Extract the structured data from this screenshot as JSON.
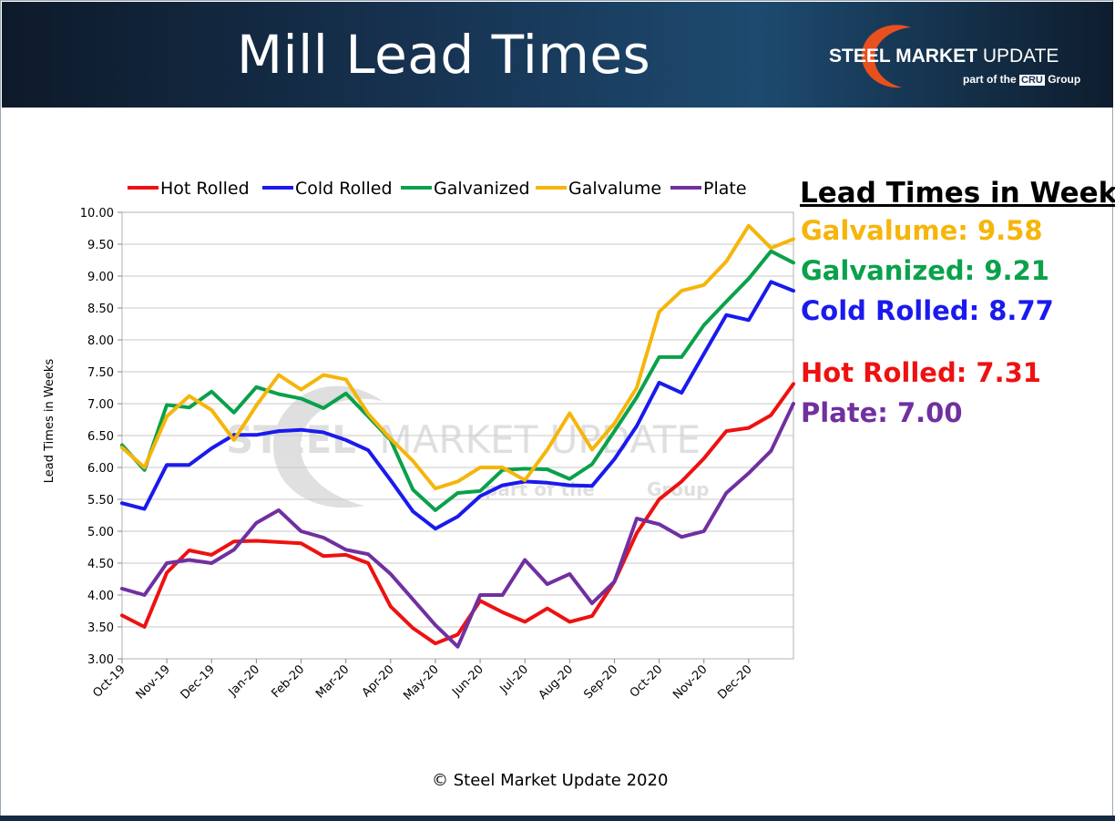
{
  "slide": {
    "title": "Mill Lead Times",
    "copyright": "© Steel Market Update 2020"
  },
  "brand": {
    "name_bold": "STEEL MARKET",
    "name_light": "UPDATE",
    "tagline_pre": "part of the",
    "tagline_mark": "CRU",
    "tagline_post": "Group",
    "swoosh_color": "#e8501e"
  },
  "side_panel": {
    "title": "Lead Times in Weeks",
    "items": [
      {
        "text": "Galvalume: 9.58",
        "color": "#f5b50a"
      },
      {
        "text": "Galvanized: 9.21",
        "color": "#0aa14a"
      },
      {
        "text": "Cold Rolled: 8.77",
        "color": "#1a1aee"
      },
      {
        "text": "Hot Rolled: 7.31",
        "color": "#ee1111"
      },
      {
        "text": "Plate: 7.00",
        "color": "#7030a0"
      }
    ]
  },
  "chart_data": {
    "type": "line",
    "title": "",
    "xlabel": "",
    "ylabel": "Lead Times in Weeks",
    "ylim": [
      3.0,
      10.0
    ],
    "y_ticks": [
      "3.00",
      "3.50",
      "4.00",
      "4.50",
      "5.00",
      "5.50",
      "6.00",
      "6.50",
      "7.00",
      "7.50",
      "8.00",
      "8.50",
      "9.00",
      "9.50",
      "10.00"
    ],
    "x_tick_labels": [
      "Oct-19",
      "Nov-19",
      "Dec-19",
      "Jan-20",
      "Feb-20",
      "Mar-20",
      "Apr-20",
      "May-20",
      "Jun-20",
      "Jul-20",
      "Aug-20",
      "Sep-20",
      "Oct-20",
      "Nov-20",
      "Dec-20"
    ],
    "points_per_month": 2,
    "series": [
      {
        "name": "Hot Rolled",
        "color": "#ee1111",
        "values": [
          3.68,
          3.5,
          4.35,
          4.7,
          4.63,
          4.84,
          4.85,
          4.83,
          4.81,
          4.61,
          4.63,
          4.5,
          3.82,
          3.48,
          3.24,
          3.38,
          3.91,
          3.73,
          3.58,
          3.79,
          3.58,
          3.67,
          4.21,
          4.97,
          5.5,
          5.78,
          6.14,
          6.57,
          6.62,
          6.82,
          7.31
        ]
      },
      {
        "name": "Cold Rolled",
        "color": "#1a1aee",
        "values": [
          5.44,
          5.35,
          6.04,
          6.04,
          6.3,
          6.51,
          6.51,
          6.57,
          6.59,
          6.55,
          6.43,
          6.27,
          5.8,
          5.31,
          5.04,
          5.23,
          5.55,
          5.72,
          5.78,
          5.76,
          5.72,
          5.71,
          6.13,
          6.65,
          7.33,
          7.17,
          7.78,
          8.39,
          8.31,
          8.91,
          8.77
        ]
      },
      {
        "name": "Galvanized",
        "color": "#0aa14a",
        "values": [
          6.35,
          5.96,
          6.98,
          6.94,
          7.19,
          6.86,
          7.26,
          7.15,
          7.08,
          6.93,
          7.16,
          6.8,
          6.43,
          5.65,
          5.33,
          5.6,
          5.63,
          5.96,
          5.98,
          5.97,
          5.82,
          6.05,
          6.57,
          7.1,
          7.73,
          7.73,
          8.23,
          8.6,
          8.96,
          9.39,
          9.21
        ]
      },
      {
        "name": "Galvalume",
        "color": "#f5b50a",
        "values": [
          6.31,
          6.0,
          6.8,
          7.12,
          6.9,
          6.43,
          6.97,
          7.45,
          7.22,
          7.45,
          7.38,
          6.84,
          6.45,
          6.1,
          5.67,
          5.78,
          6.0,
          6.0,
          5.8,
          6.28,
          6.85,
          6.28,
          6.69,
          7.25,
          8.44,
          8.77,
          8.86,
          9.23,
          9.79,
          9.44,
          9.58
        ]
      },
      {
        "name": "Plate",
        "color": "#7030a0",
        "values": [
          4.1,
          4.0,
          4.5,
          4.55,
          4.5,
          4.71,
          5.13,
          5.33,
          5.0,
          4.9,
          4.71,
          4.64,
          4.33,
          3.93,
          3.53,
          3.19,
          4.0,
          4.0,
          4.55,
          4.17,
          4.33,
          3.87,
          4.21,
          5.2,
          5.11,
          4.91,
          5.0,
          5.6,
          5.91,
          6.26,
          7.0
        ]
      }
    ],
    "legend_position": "top",
    "watermark": {
      "line1_bold": "STEEL",
      "line1_light": "MARKET UPDATE",
      "line2_pre": "part of the",
      "line2_post": "Group"
    }
  }
}
